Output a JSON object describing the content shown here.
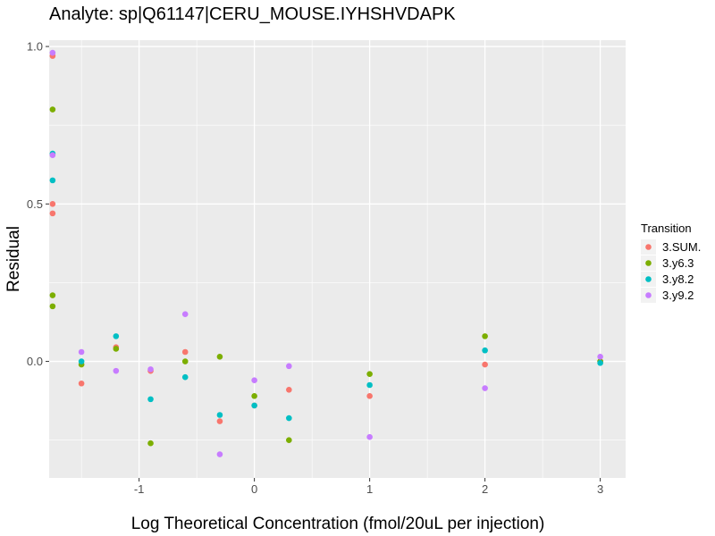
{
  "chart_data": {
    "type": "scatter",
    "title": "Analyte: sp|Q61147|CERU_MOUSE.IYHSHVDAPK",
    "xlabel": "Log Theoretical Concentration (fmol/20uL per injection)",
    "ylabel": "Residual",
    "xlim": [
      -1.78,
      3.22
    ],
    "ylim": [
      -0.37,
      1.02
    ],
    "x_ticks": [
      -1,
      0,
      1,
      2,
      3
    ],
    "x_tick_labels": [
      "-1",
      "0",
      "1",
      "2",
      "3"
    ],
    "y_ticks": [
      0.0,
      0.5,
      1.0
    ],
    "y_tick_labels": [
      "0.0",
      "0.5",
      "1.0"
    ],
    "grid": true,
    "panel_background": "#ebebeb",
    "grid_color": "#ffffff",
    "legend": {
      "title": "Transition",
      "position": "right"
    },
    "series": [
      {
        "name": "3.SUM.",
        "color": "#F8766D",
        "points": [
          {
            "x": -1.75,
            "y": 0.97
          },
          {
            "x": -1.75,
            "y": 0.5
          },
          {
            "x": -1.75,
            "y": 0.47
          },
          {
            "x": -1.5,
            "y": -0.07
          },
          {
            "x": -1.2,
            "y": 0.045
          },
          {
            "x": -0.9,
            "y": -0.03
          },
          {
            "x": -0.6,
            "y": 0.03
          },
          {
            "x": -0.3,
            "y": -0.19
          },
          {
            "x": 0.0,
            "y": -0.14
          },
          {
            "x": 0.3,
            "y": -0.09
          },
          {
            "x": 1.0,
            "y": -0.11
          },
          {
            "x": 2.0,
            "y": -0.01
          },
          {
            "x": 3.0,
            "y": 0.0
          }
        ]
      },
      {
        "name": "3.y6.3",
        "color": "#7CAE00",
        "points": [
          {
            "x": -1.75,
            "y": 0.8
          },
          {
            "x": -1.75,
            "y": 0.21
          },
          {
            "x": -1.75,
            "y": 0.175
          },
          {
            "x": -1.5,
            "y": -0.01
          },
          {
            "x": -1.2,
            "y": 0.04
          },
          {
            "x": -0.9,
            "y": -0.26
          },
          {
            "x": -0.6,
            "y": 0.0
          },
          {
            "x": -0.3,
            "y": 0.015
          },
          {
            "x": 0.0,
            "y": -0.11
          },
          {
            "x": 0.3,
            "y": -0.25
          },
          {
            "x": 1.0,
            "y": -0.04
          },
          {
            "x": 2.0,
            "y": 0.08
          },
          {
            "x": 3.0,
            "y": 0.0
          }
        ]
      },
      {
        "name": "3.y8.2",
        "color": "#00BFC4",
        "points": [
          {
            "x": -1.75,
            "y": 0.66
          },
          {
            "x": -1.75,
            "y": 0.575
          },
          {
            "x": -1.5,
            "y": 0.0
          },
          {
            "x": -1.2,
            "y": 0.08
          },
          {
            "x": -0.9,
            "y": -0.12
          },
          {
            "x": -0.6,
            "y": -0.05
          },
          {
            "x": -0.3,
            "y": -0.17
          },
          {
            "x": 0.0,
            "y": -0.14
          },
          {
            "x": 0.3,
            "y": -0.18
          },
          {
            "x": 1.0,
            "y": -0.075
          },
          {
            "x": 2.0,
            "y": 0.035
          },
          {
            "x": 3.0,
            "y": -0.005
          }
        ]
      },
      {
        "name": "3.y9.2",
        "color": "#C77CFF",
        "points": [
          {
            "x": -1.75,
            "y": 0.98
          },
          {
            "x": -1.75,
            "y": 0.655
          },
          {
            "x": -1.5,
            "y": 0.03
          },
          {
            "x": -1.2,
            "y": -0.03
          },
          {
            "x": -0.9,
            "y": -0.025
          },
          {
            "x": -0.6,
            "y": 0.15
          },
          {
            "x": -0.3,
            "y": -0.295
          },
          {
            "x": 0.0,
            "y": -0.06
          },
          {
            "x": 0.3,
            "y": -0.015
          },
          {
            "x": 1.0,
            "y": -0.24
          },
          {
            "x": 2.0,
            "y": -0.085
          },
          {
            "x": 3.0,
            "y": 0.015
          }
        ]
      }
    ]
  }
}
